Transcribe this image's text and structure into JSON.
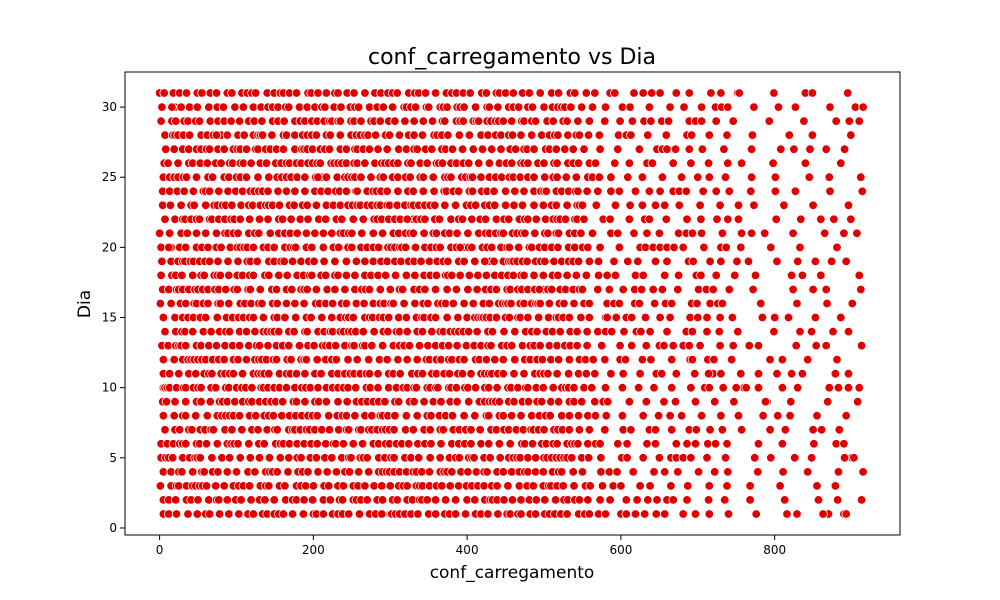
{
  "chart_data": {
    "type": "scatter",
    "title": "conf_carregamento vs Dia",
    "xlabel": "conf_carregamento",
    "ylabel": "Dia",
    "xlim": [
      -45,
      963
    ],
    "ylim": [
      -0.5,
      32.5
    ],
    "xticks": [
      0,
      200,
      400,
      600,
      800
    ],
    "yticks": [
      0,
      5,
      10,
      15,
      20,
      25,
      30
    ],
    "grid": false,
    "legend": "none",
    "marker_color": "#e00000",
    "marker_edge_color": "#ffffff",
    "x_range": [
      0,
      915
    ],
    "y_values": [
      1,
      31
    ],
    "series": [
      {
        "points": [
          [
            0,
            31
          ],
          [
            20,
            30
          ],
          [
            45,
            29
          ],
          [
            80,
            28
          ],
          [
            130,
            27
          ],
          [
            175,
            26
          ],
          [
            210,
            25
          ],
          [
            255,
            24
          ],
          [
            300,
            23
          ],
          [
            330,
            22
          ],
          [
            360,
            21
          ],
          [
            395,
            20
          ],
          [
            430,
            19
          ],
          [
            470,
            18
          ],
          [
            500,
            17
          ],
          [
            540,
            16
          ],
          [
            580,
            15
          ],
          [
            620,
            14
          ],
          [
            650,
            13
          ],
          [
            690,
            12
          ],
          [
            720,
            11
          ],
          [
            760,
            10
          ],
          [
            790,
            9
          ],
          [
            820,
            8
          ],
          [
            850,
            7
          ],
          [
            880,
            6
          ],
          [
            900,
            5
          ],
          [
            915,
            4
          ],
          [
            910,
            29
          ],
          [
            905,
            30
          ],
          [
            840,
            31
          ],
          [
            752,
            31
          ],
          [
            870,
            1
          ],
          [
            890,
            1
          ],
          [
            600,
            1
          ],
          [
            300,
            1
          ],
          [
            150,
            1
          ],
          [
            10,
            1
          ],
          [
            5,
            10
          ],
          [
            15,
            20
          ]
        ]
      }
    ]
  }
}
